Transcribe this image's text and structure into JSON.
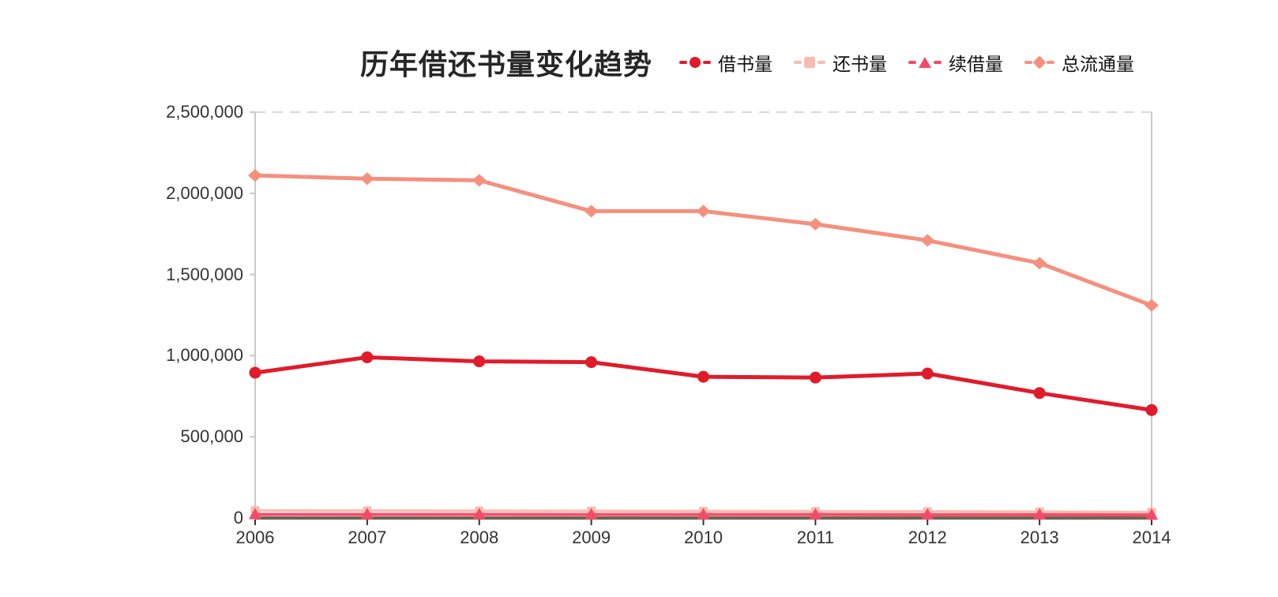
{
  "page": {
    "background": "#ffffff"
  },
  "header": {
    "title": "历年借还书量变化趋势"
  },
  "chart_data": {
    "type": "line",
    "title": "历年借还书量变化趋势",
    "xlabel": "",
    "ylabel": "",
    "categories": [
      "2006",
      "2007",
      "2008",
      "2009",
      "2010",
      "2011",
      "2012",
      "2013",
      "2014"
    ],
    "series": [
      {
        "id": "borrow",
        "name": "借书量",
        "marker": "circle",
        "color": "#e01b2c",
        "values": [
          895000,
          990000,
          965000,
          960000,
          870000,
          865000,
          890000,
          770000,
          665000
        ]
      },
      {
        "id": "return",
        "name": "还书量",
        "marker": "square",
        "color": "#f9bcb0",
        "values": [
          46000,
          45000,
          44000,
          43000,
          42000,
          41000,
          40000,
          38000,
          36000
        ]
      },
      {
        "id": "renew",
        "name": "续借量",
        "marker": "triangle",
        "color": "#f44a6a",
        "values": [
          22000,
          22000,
          22000,
          21000,
          21000,
          21000,
          20000,
          20000,
          19000
        ]
      },
      {
        "id": "total",
        "name": "总流通量",
        "marker": "diamond",
        "color": "#f5907e",
        "values": [
          2110000,
          2090000,
          2080000,
          1890000,
          1890000,
          1810000,
          1710000,
          1570000,
          1310000
        ]
      }
    ],
    "ylim": [
      0,
      2500000
    ],
    "y_ticks": [
      {
        "value": 0,
        "label": "0"
      },
      {
        "value": 500000,
        "label": "500,000"
      },
      {
        "value": 1000000,
        "label": "1,000,000"
      },
      {
        "value": 1500000,
        "label": "1,500,000"
      },
      {
        "value": 2000000,
        "label": "2,000,000"
      },
      {
        "value": 2500000,
        "label": "2,500,000"
      }
    ],
    "grid": {
      "top_gridline_dashed": true,
      "other_gridlines": false
    },
    "legend_position": "top-right",
    "colors": {
      "x_axis_line": "#6b6553",
      "y_axis_line": "#c9c9c9",
      "plot_right_border": "#c9c9c9",
      "dashed_gridline": "#d9d9d9",
      "tick_text": "#333333",
      "title_text": "#262626"
    }
  }
}
